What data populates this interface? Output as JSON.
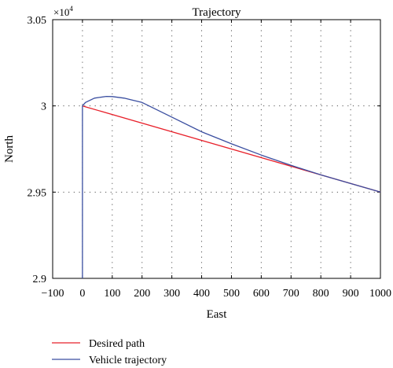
{
  "chart_data": {
    "type": "line",
    "title": "Trajectory",
    "xlabel": "East",
    "ylabel": "North",
    "xlim": [
      -100,
      1000
    ],
    "ylim": [
      29000,
      30500
    ],
    "x_ticks": [
      -100,
      0,
      100,
      200,
      300,
      400,
      500,
      600,
      700,
      800,
      900,
      1000
    ],
    "x_tick_labels": [
      "−100",
      "0",
      "100",
      "200",
      "300",
      "400",
      "500",
      "600",
      "700",
      "800",
      "900",
      "1000"
    ],
    "y_ticks": [
      29000,
      29500,
      30000,
      30500
    ],
    "y_tick_labels": [
      "2.9",
      "2.95",
      "3",
      "3.05"
    ],
    "y_exponent_label": "×10",
    "y_exponent_power": "4",
    "grid": true,
    "legend_position": "bottom-left, below plot",
    "series": [
      {
        "name": "Desired path",
        "color": "#e8202a",
        "x": [
          0,
          1000
        ],
        "y": [
          30000,
          29500
        ]
      },
      {
        "name": "Vehicle trajectory",
        "color": "#3a4ea0",
        "x": [
          0,
          0,
          10,
          40,
          80,
          100,
          140,
          200,
          300,
          400,
          500,
          600,
          700,
          800,
          900,
          1000
        ],
        "y": [
          29000,
          30000,
          30020,
          30045,
          30055,
          30054,
          30045,
          30020,
          29935,
          29850,
          29780,
          29715,
          29655,
          29600,
          29550,
          29500
        ]
      }
    ]
  }
}
